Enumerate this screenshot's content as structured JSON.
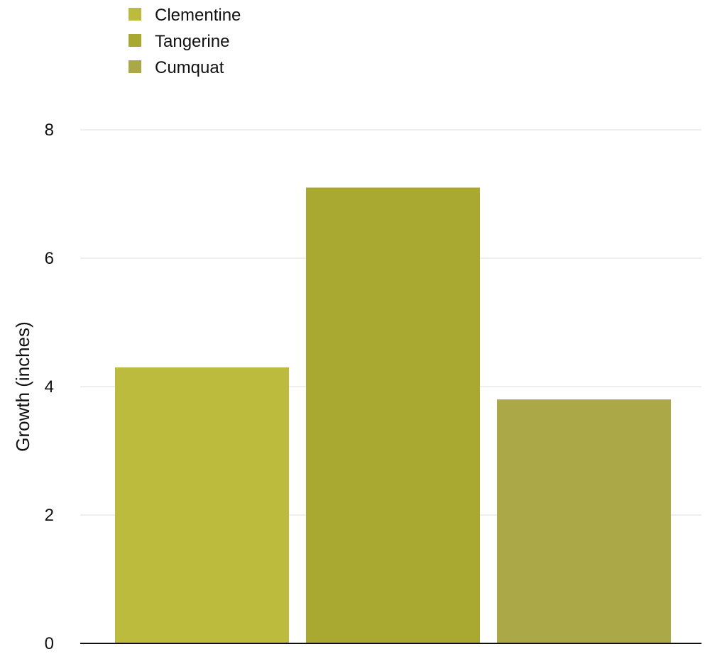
{
  "chart_data": {
    "type": "bar",
    "title": "",
    "xlabel": "",
    "ylabel": "Growth (inches)",
    "ylim": [
      0,
      8
    ],
    "yticks": [
      0,
      2,
      4,
      6,
      8
    ],
    "grid": true,
    "legend_position": "top-left",
    "series": [
      {
        "name": "Clementine",
        "value": 4.3,
        "color": "#bdbb3e"
      },
      {
        "name": "Tangerine",
        "value": 7.1,
        "color": "#a9a932"
      },
      {
        "name": "Cumquat",
        "value": 3.8,
        "color": "#aaa847"
      }
    ]
  }
}
